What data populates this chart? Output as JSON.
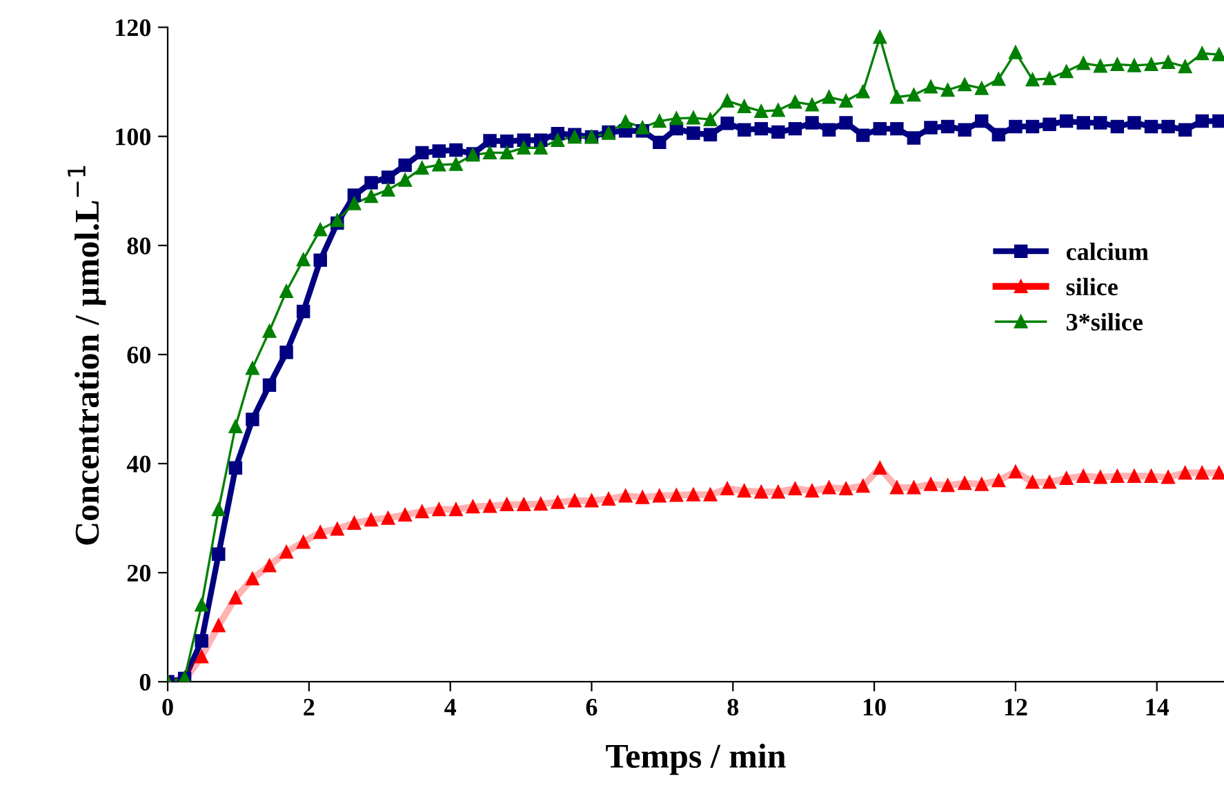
{
  "chart_data": {
    "type": "line",
    "xlabel": "Temps / min",
    "ylabel": "Concentration / µmol.L$^{−1}$",
    "x": [
      0,
      0.24,
      0.48,
      0.72,
      0.96,
      1.2,
      1.44,
      1.68,
      1.92,
      2.16,
      2.4,
      2.64,
      2.88,
      3.12,
      3.36,
      3.6,
      3.84,
      4.08,
      4.32,
      4.56,
      4.8,
      5.04,
      5.28,
      5.52,
      5.76,
      6.0,
      6.24,
      6.48,
      6.72,
      6.96,
      7.2,
      7.44,
      7.68,
      7.92,
      8.16,
      8.4,
      8.64,
      8.88,
      9.12,
      9.36,
      9.6,
      9.84,
      10.08,
      10.32,
      10.56,
      10.8,
      11.04,
      11.28,
      11.52,
      11.76,
      12.0,
      12.24,
      12.48,
      12.72,
      12.96,
      13.2,
      13.44,
      13.68,
      13.92,
      14.16,
      14.4,
      14.64,
      14.88
    ],
    "series": [
      {
        "name": "calcium",
        "color": "#000080",
        "marker": "square",
        "values": [
          0,
          0.6,
          7.5,
          23.4,
          39.2,
          48.1,
          54.4,
          60.4,
          67.9,
          77.3,
          84.1,
          89.2,
          91.5,
          92.5,
          94.7,
          97.0,
          97.3,
          97.5,
          96.8,
          99.2,
          99.1,
          99.3,
          99.3,
          100.5,
          100.3,
          99.9,
          100.8,
          101.0,
          101.0,
          98.9,
          101.4,
          100.6,
          100.3,
          102.4,
          101.2,
          101.4,
          100.8,
          101.4,
          102.5,
          101.2,
          102.5,
          100.2,
          101.4,
          101.4,
          99.7,
          101.6,
          101.8,
          101.2,
          102.8,
          100.3,
          101.8,
          101.8,
          102.2,
          102.8,
          102.5,
          102.5,
          101.8,
          102.5,
          101.8,
          101.8,
          101.2,
          102.8,
          102.8
        ]
      },
      {
        "name": "silice",
        "color": "#ff0000",
        "marker": "triangle",
        "values": [
          0,
          0.3,
          4.6,
          10.3,
          15.4,
          18.9,
          21.3,
          23.8,
          25.6,
          27.4,
          28.0,
          29.1,
          29.7,
          30.0,
          30.6,
          31.2,
          31.6,
          31.6,
          32.1,
          32.2,
          32.5,
          32.5,
          32.6,
          32.9,
          33.2,
          33.2,
          33.5,
          34.1,
          33.8,
          34.1,
          34.2,
          34.3,
          34.3,
          35.4,
          35.0,
          34.8,
          34.8,
          35.4,
          35.0,
          35.6,
          35.4,
          35.9,
          39.2,
          35.6,
          35.6,
          36.2,
          36.0,
          36.4,
          36.2,
          36.9,
          38.5,
          36.6,
          36.6,
          37.3,
          37.7,
          37.5,
          37.7,
          37.7,
          37.7,
          37.5,
          38.3,
          38.3,
          38.3
        ]
      },
      {
        "name": "3*silice",
        "color": "#008000",
        "marker": "triangle",
        "values": [
          0,
          0.7,
          14.1,
          31.6,
          46.8,
          57.5,
          64.3,
          71.6,
          77.4,
          82.9,
          84.6,
          87.7,
          89.0,
          90.2,
          92.0,
          94.2,
          94.8,
          94.9,
          96.6,
          97.0,
          97.0,
          97.9,
          97.9,
          99.3,
          99.9,
          99.9,
          100.6,
          102.7,
          101.6,
          102.8,
          103.3,
          103.4,
          103.1,
          106.5,
          105.5,
          104.6,
          104.8,
          106.3,
          105.8,
          107.2,
          106.5,
          108.2,
          118.2,
          107.2,
          107.6,
          109.1,
          108.5,
          109.5,
          108.8,
          110.5,
          115.4,
          110.4,
          110.6,
          111.9,
          113.4,
          112.9,
          113.2,
          113.0,
          113.2,
          113.6,
          112.8,
          115.2,
          115.0
        ]
      }
    ],
    "xlim": [
      0,
      14.95
    ],
    "xticks": [
      0,
      2,
      4,
      6,
      8,
      10,
      12,
      14
    ],
    "ylim": [
      0,
      120
    ],
    "yticks": [
      0,
      20,
      40,
      60,
      80,
      100,
      120
    ],
    "grid": false,
    "legend": "right",
    "line_style": "solid"
  }
}
